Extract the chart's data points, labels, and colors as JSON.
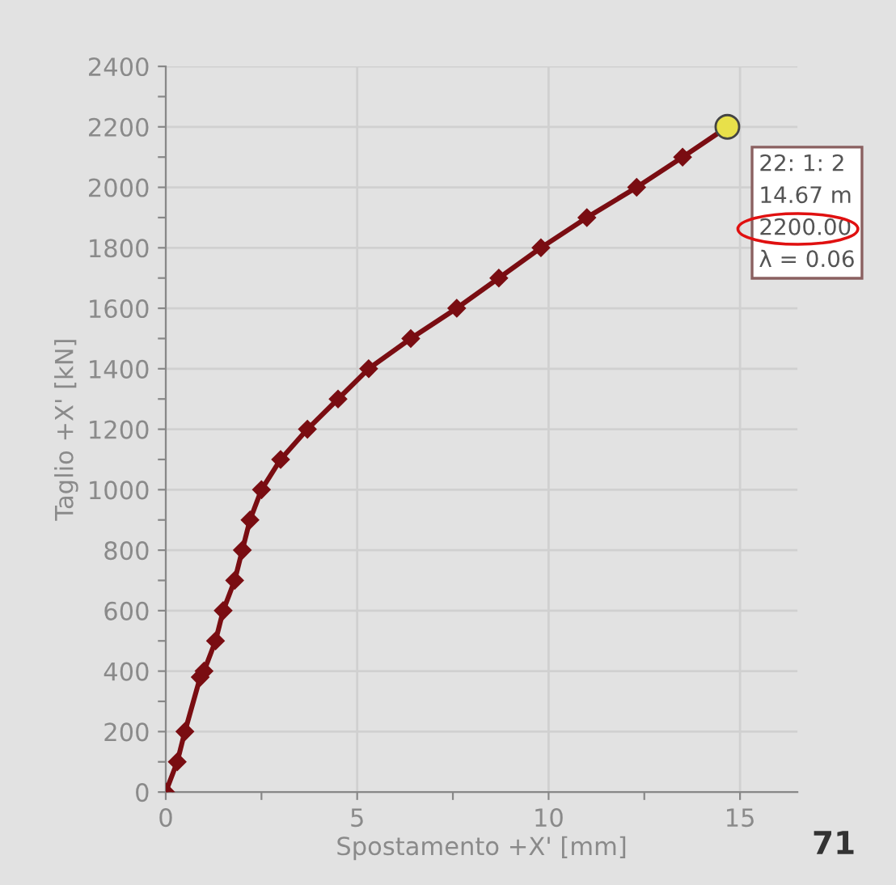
{
  "chart_data": {
    "type": "line",
    "xlabel": "Spostamento +X' [mm]",
    "ylabel": "Taglio +X' [kN]",
    "xlim": [
      0,
      16.5
    ],
    "ylim": [
      0,
      2400
    ],
    "xticks": [
      0,
      {
        "value": 2.5,
        "label": null
      },
      5,
      {
        "value": 7.5,
        "label": null
      },
      10,
      {
        "value": 12.5,
        "label": null
      },
      15
    ],
    "yticks": [
      0,
      {
        "value": 100,
        "label": null
      },
      200,
      {
        "value": 300,
        "label": null
      },
      400,
      {
        "value": 500,
        "label": null
      },
      600,
      {
        "value": 700,
        "label": null
      },
      800,
      {
        "value": 900,
        "label": null
      },
      1000,
      {
        "value": 1100,
        "label": null
      },
      1200,
      {
        "value": 1300,
        "label": null
      },
      1400,
      {
        "value": 1500,
        "label": null
      },
      1600,
      {
        "value": 1700,
        "label": null
      },
      1800,
      {
        "value": 1900,
        "label": null
      },
      2000,
      {
        "value": 2100,
        "label": null
      },
      2200,
      {
        "value": 2300,
        "label": null
      },
      2400
    ],
    "grid": true,
    "marker": "diamond",
    "line_style": "solid",
    "series": [
      {
        "color": "#7a0d12",
        "x": [
          0,
          0.3,
          0.5,
          0.9,
          1.0,
          1.3,
          1.5,
          1.8,
          2.0,
          2.2,
          2.5,
          3.0,
          3.7,
          4.5,
          5.3,
          6.4,
          7.6,
          8.7,
          9.8,
          11.0,
          12.3,
          13.5,
          14.67
        ],
        "values": [
          0,
          100,
          200,
          380,
          400,
          500,
          600,
          700,
          800,
          900,
          1000,
          1100,
          1200,
          1300,
          1400,
          1500,
          1600,
          1700,
          1800,
          1900,
          2000,
          2100,
          2200
        ]
      },
      {
        "type": "scatter",
        "marker": "circle",
        "color": "#e8e04a",
        "x": [
          14.67
        ],
        "values": [
          2200
        ]
      }
    ],
    "annotations": [
      {
        "text": "22: 1: 2\n14.67 m\n2200.00\nλ = 0.06",
        "x": 14.67,
        "y": 2200
      },
      "71"
    ]
  }
}
